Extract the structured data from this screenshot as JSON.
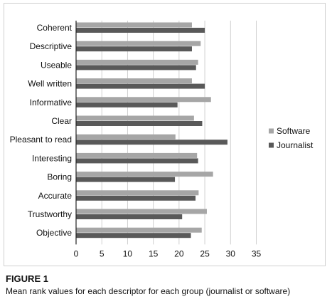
{
  "figure": {
    "title": "FIGURE 1",
    "caption": "Mean rank values for each descriptor for each group (journalist or software)"
  },
  "colors": {
    "software": "#a6a6a6",
    "journalist": "#595959",
    "grid": "#d0d0d0"
  },
  "chart_data": {
    "type": "bar",
    "orientation": "horizontal",
    "categories": [
      "Coherent",
      "Descriptive",
      "Useable",
      "Well written",
      "Informative",
      "Clear",
      "Pleasant to read",
      "Interesting",
      "Boring",
      "Accurate",
      "Trustworthy",
      "Objective"
    ],
    "series": [
      {
        "name": "Software",
        "values": [
          22.5,
          24.2,
          23.7,
          22.5,
          26.2,
          22.9,
          19.3,
          23.5,
          26.6,
          23.8,
          25.4,
          24.4
        ]
      },
      {
        "name": "Journalist",
        "values": [
          25.0,
          22.5,
          23.3,
          25.0,
          19.7,
          24.5,
          29.4,
          23.7,
          19.2,
          23.2,
          20.6,
          22.3
        ]
      }
    ],
    "xticks": [
      0,
      5,
      10,
      15,
      20,
      25,
      30,
      35
    ],
    "xlim": [
      0,
      35
    ],
    "grid": true,
    "legend": "right"
  }
}
